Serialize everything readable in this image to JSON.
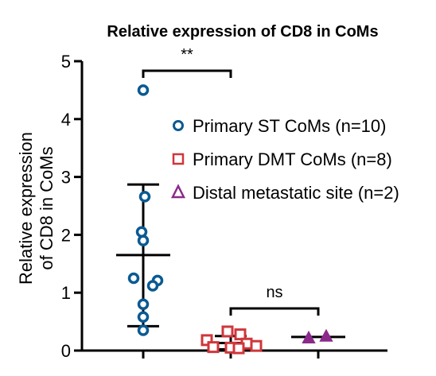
{
  "chart_data": {
    "type": "scatter",
    "title": "Relative expression of CD8 in CoMs",
    "ylabel_lines": [
      "Relative expression",
      "of CD8 in CoMs"
    ],
    "xlabel": "",
    "ylim": [
      0,
      5
    ],
    "yticks": [
      "0",
      "1",
      "2",
      "3",
      "4",
      "5"
    ],
    "legend_position": "right",
    "grid": false,
    "series": [
      {
        "name": "Primary ST CoMs (n=10)",
        "marker": "circle",
        "color": "#0a5a92",
        "values": [
          4.5,
          2.66,
          2.05,
          1.9,
          1.25,
          1.21,
          1.12,
          0.8,
          0.58,
          0.35
        ],
        "mean": 1.65,
        "sd_upper": 2.87,
        "sd_lower": 0.42
      },
      {
        "name": "Primary DMT CoMs (n=8)",
        "marker": "square",
        "color": "#d0363b",
        "values": [
          0.33,
          0.28,
          0.18,
          0.12,
          0.08,
          0.06,
          0.05,
          0.04
        ],
        "mean": 0.13,
        "sd_upper": 0.25,
        "sd_lower": 0.02
      },
      {
        "name": "Distal metastatic site (n=2)",
        "marker": "triangle",
        "color": "#8b2a8b",
        "values": [
          0.22,
          0.25
        ],
        "mean": 0.235,
        "sd_upper": 0.25,
        "sd_lower": 0.22
      }
    ],
    "annotations": [
      {
        "text": "**",
        "from": 0,
        "to": 1
      },
      {
        "text": "ns",
        "from": 1,
        "to": 2
      }
    ]
  }
}
